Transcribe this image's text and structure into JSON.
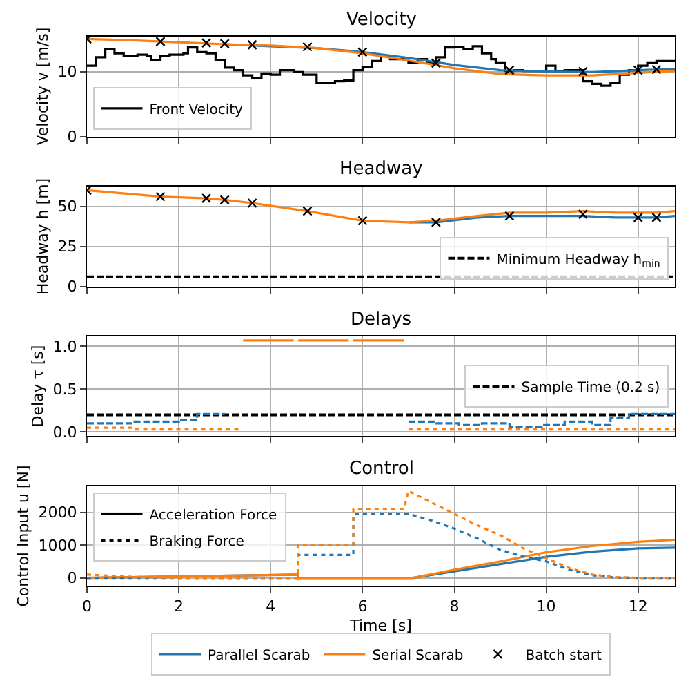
{
  "chart_data": [
    {
      "type": "line",
      "title": "Velocity",
      "ylabel": "Velocity v [m/s]",
      "xlim": [
        0,
        12.8
      ],
      "xticks": [
        0,
        2,
        4,
        6,
        8,
        10,
        12
      ],
      "ylim": [
        0,
        15.4
      ],
      "yticks": [
        0,
        10
      ],
      "grid": true,
      "legend": "bottom left",
      "tick_labels": "y",
      "series": [
        {
          "name": "Front Velocity",
          "type": "step",
          "color": "#000000",
          "x": [
            0,
            0.2,
            0.4,
            0.6,
            0.8,
            1.1,
            1.3,
            1.4,
            1.6,
            1.8,
            2.1,
            2.2,
            2.4,
            2.6,
            2.8,
            3.0,
            3.2,
            3.4,
            3.6,
            3.8,
            4.0,
            4.2,
            4.5,
            4.7,
            5.0,
            5.4,
            5.6,
            5.8,
            6.0,
            6.2,
            6.4,
            6.6,
            6.9,
            7.0,
            7.2,
            7.4,
            7.6,
            7.8,
            8.0,
            8.2,
            8.4,
            8.6,
            8.8,
            8.9,
            9.1,
            9.3,
            9.5,
            10.0,
            10.2,
            10.4,
            10.8,
            11.0,
            11.2,
            11.4,
            11.6,
            11.8,
            12.0,
            12.2,
            12.4,
            12.6,
            12.8
          ],
          "values": [
            10.9,
            12.2,
            13.4,
            12.8,
            12.4,
            12.6,
            12.4,
            11.7,
            12.4,
            12.6,
            12.8,
            13.7,
            13.0,
            12.8,
            11.7,
            10.6,
            10.2,
            9.4,
            9.0,
            9.7,
            9.5,
            10.2,
            9.9,
            9.5,
            8.3,
            8.5,
            8.6,
            10.2,
            10.7,
            11.6,
            12.4,
            11.9,
            11.7,
            11.4,
            11.9,
            11.4,
            12.2,
            13.7,
            13.8,
            13.5,
            13.9,
            12.8,
            11.9,
            11.3,
            10.1,
            10.2,
            10.1,
            10.9,
            10.1,
            10.2,
            8.5,
            8.1,
            7.8,
            8.3,
            9.5,
            10.2,
            10.9,
            11.3,
            11.6,
            11.6,
            11.6
          ]
        },
        {
          "name": "Parallel Scarab",
          "color": "#1f77b4",
          "x": [
            3,
            4,
            5,
            6,
            7,
            8,
            9,
            10,
            11,
            12,
            12.8
          ],
          "values": [
            14.2,
            13.9,
            13.6,
            13.0,
            12.1,
            11.0,
            10.2,
            10.0,
            9.9,
            10.2,
            10.4
          ]
        },
        {
          "name": "Serial Scarab",
          "color": "#ff7f0e",
          "x": [
            0,
            1,
            2,
            3,
            4,
            5,
            6,
            7,
            8,
            9,
            10,
            11,
            12,
            12.8
          ],
          "values": [
            15,
            14.8,
            14.5,
            14.2,
            14.0,
            13.6,
            12.8,
            11.7,
            10.5,
            9.6,
            9.4,
            9.4,
            9.8,
            10.1
          ]
        },
        {
          "name": "Batch start",
          "type": "scatter",
          "marker": "cross",
          "color": "#000000",
          "x": [
            0,
            1.6,
            2.6,
            3.0,
            3.6,
            4.8,
            6.0,
            7.6,
            9.2,
            10.8,
            12.0,
            12.4
          ],
          "values": [
            15,
            14.6,
            14.4,
            14.3,
            14.1,
            13.8,
            13.0,
            11.3,
            10.2,
            10.0,
            10.2,
            10.3
          ]
        }
      ]
    },
    {
      "type": "line",
      "title": "Headway",
      "ylabel": "Headway h [m]",
      "xlim": [
        0,
        12.8
      ],
      "xticks": [
        0,
        2,
        4,
        6,
        8,
        10,
        12
      ],
      "ylim": [
        0,
        62.5
      ],
      "yticks": [
        0,
        25,
        50
      ],
      "grid": true,
      "legend": "bottom right",
      "tick_labels": "y",
      "ref_lines": [
        {
          "axis": "y",
          "value": 6,
          "label": "Minimum Headway h$_{min}$",
          "color": "#000000",
          "line_style": "dashed"
        }
      ],
      "series": [
        {
          "color": "#1f77b4",
          "x": [
            7.0,
            7.6,
            8.5,
            9.2,
            10.0,
            10.8,
            11.5,
            12.0,
            12.4,
            12.8
          ],
          "values": [
            40,
            40,
            43,
            44,
            44,
            44,
            43,
            43,
            43,
            44
          ]
        },
        {
          "color": "#ff7f0e",
          "x": [
            0,
            1.6,
            2.6,
            3.0,
            3.6,
            4.8,
            6.0,
            7.0,
            7.6,
            8.5,
            9.2,
            10.0,
            10.8,
            11.5,
            12.0,
            12.4,
            12.8
          ],
          "values": [
            60,
            56,
            55,
            54,
            52,
            47,
            41,
            40,
            41,
            44,
            46,
            46,
            47,
            46,
            46,
            46,
            47
          ]
        },
        {
          "type": "scatter",
          "marker": "cross",
          "color": "#000000",
          "x": [
            0,
            1.6,
            2.6,
            3.0,
            3.6,
            4.8,
            6.0,
            7.6,
            9.2,
            10.8,
            12.0,
            12.4
          ],
          "values": [
            60,
            56,
            55,
            54,
            52,
            47,
            41,
            40,
            44,
            45,
            43,
            43
          ]
        }
      ]
    },
    {
      "type": "step",
      "title": "Delays",
      "ylabel": "Delay τ [s]",
      "xlim": [
        0,
        12.8
      ],
      "xticks": [
        0,
        2,
        4,
        6,
        8,
        10,
        12
      ],
      "ylim": [
        -0.05,
        1.12
      ],
      "yticks": [
        {
          "value": 0,
          "label": "0.0"
        },
        {
          "value": 0.5,
          "label": "0.5"
        },
        {
          "value": 1,
          "label": "1.0"
        }
      ],
      "grid": true,
      "legend": "right",
      "tick_labels": "y",
      "ref_lines": [
        {
          "axis": "y",
          "value": 0.2,
          "label": "Sample Time (0.2 s)",
          "color": "#000000",
          "line_style": "dashed"
        }
      ],
      "series": [
        {
          "color": "#1f77b4",
          "line_style": "dashed",
          "x": [
            0,
            1.0,
            2.0,
            2.4,
            3.0
          ],
          "values": [
            0.1,
            0.12,
            0.14,
            0.21,
            0.21
          ]
        },
        {
          "color": "#1f77b4",
          "line_style": "dashed",
          "x": [
            7.0,
            7.6,
            8.1,
            8.6,
            9.2,
            9.9,
            10.4,
            11.0,
            11.4,
            11.8,
            12.8
          ],
          "values": [
            0.12,
            0.1,
            0.08,
            0.1,
            0.06,
            0.08,
            0.12,
            0.08,
            0.16,
            0.21,
            0.21
          ]
        },
        {
          "color": "#ff7f0e",
          "line_style": "dotted",
          "x": [
            0,
            1.0,
            3.3
          ],
          "values": [
            0.05,
            0.03,
            0.03
          ]
        },
        {
          "color": "#ff7f0e",
          "line_style": "dotted",
          "x": [
            7.0,
            12.8
          ],
          "values": [
            0.03,
            0.03
          ]
        },
        {
          "color": "#ff7f0e",
          "x": [
            3.4,
            4.5
          ],
          "values": [
            1.07,
            1.07
          ]
        },
        {
          "color": "#ff7f0e",
          "x": [
            4.6,
            5.7
          ],
          "values": [
            1.07,
            1.07
          ]
        },
        {
          "color": "#ff7f0e",
          "x": [
            5.8,
            6.9
          ],
          "values": [
            1.07,
            1.07
          ]
        }
      ]
    },
    {
      "type": "line",
      "title": "Control",
      "xlabel": "Time [s]",
      "ylabel": "Control Input u [N]",
      "xlim": [
        0,
        12.8
      ],
      "xticks": [
        0,
        2,
        4,
        6,
        8,
        10,
        12
      ],
      "ylim": [
        -250,
        2800
      ],
      "yticks": [
        0,
        1000,
        2000
      ],
      "grid": true,
      "legend": "top left",
      "series": [
        {
          "name": "Acceleration Force",
          "color": "#000000"
        },
        {
          "name": "Braking Force",
          "color": "#000000",
          "line_style": "dotted"
        },
        {
          "color": "#1f77b4",
          "x": [
            0,
            4.6,
            4.6,
            7.1,
            8,
            9,
            10,
            11,
            12,
            12.8
          ],
          "values": [
            0,
            100,
            0,
            0,
            200,
            420,
            640,
            800,
            900,
            920
          ]
        },
        {
          "color": "#ff7f0e",
          "x": [
            0,
            4.6,
            4.6,
            7.1,
            8,
            9,
            10,
            11,
            12,
            12.8
          ],
          "values": [
            0,
            100,
            0,
            0,
            250,
            500,
            780,
            970,
            1100,
            1160
          ]
        },
        {
          "color": "#1f77b4",
          "line_style": "dotted",
          "x": [
            0,
            4.59,
            4.6,
            5.8,
            5.8,
            7.0,
            7.5,
            8,
            8.5,
            9,
            9.5,
            10,
            10.5,
            11,
            11.5,
            12,
            12.8
          ],
          "values": [
            0,
            0,
            700,
            700,
            1950,
            1950,
            1750,
            1500,
            1200,
            850,
            650,
            500,
            250,
            80,
            10,
            0,
            0
          ]
        },
        {
          "color": "#ff7f0e",
          "line_style": "dotted",
          "x": [
            0,
            1,
            2,
            4.59,
            4.6,
            5.8,
            5.8,
            6.9,
            7.0,
            7.5,
            8,
            8.5,
            9,
            9.5,
            10,
            10.5,
            11,
            11.5,
            12,
            12.8
          ],
          "values": [
            100,
            30,
            0,
            0,
            1000,
            1000,
            2100,
            2100,
            2650,
            2300,
            1950,
            1600,
            1300,
            900,
            600,
            300,
            100,
            20,
            0,
            0
          ]
        }
      ]
    }
  ]
}
